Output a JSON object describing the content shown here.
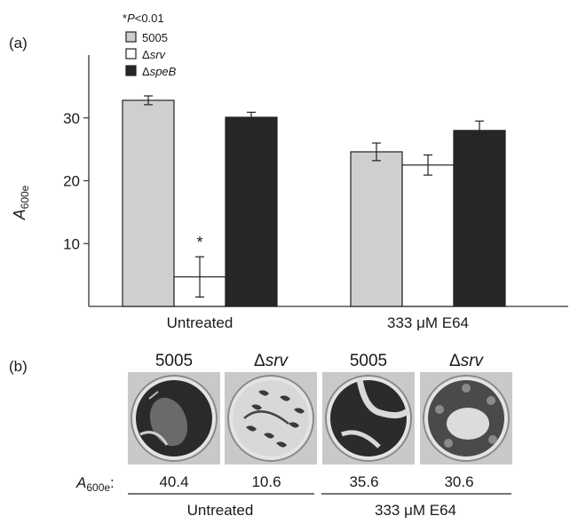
{
  "panel_a": {
    "label": "(a)",
    "significance": {
      "prefix": "*",
      "italic": "P",
      "rest": "<0.01"
    },
    "ylabel": {
      "main": "A",
      "sub": "600e"
    },
    "chart_data": {
      "type": "bar",
      "categories": [
        "Untreated",
        "333 μM E64"
      ],
      "series": [
        {
          "name": "5005",
          "name_parts": {
            "prefix": "",
            "italic": ""
          },
          "color": "#cfcfcf",
          "values": [
            32.8,
            24.6
          ],
          "errors": [
            0.7,
            1.4
          ]
        },
        {
          "name": "Δsrv",
          "name_parts": {
            "prefix": "Δ",
            "italic": "srv"
          },
          "color": "#ffffff",
          "values": [
            4.7,
            22.5
          ],
          "errors": [
            3.2,
            1.6
          ]
        },
        {
          "name": "ΔspeB",
          "name_parts": {
            "prefix": "Δ",
            "italic": "speB"
          },
          "color": "#262626",
          "values": [
            30.1,
            28.0
          ],
          "errors": [
            0.8,
            1.5
          ]
        }
      ],
      "annotations": [
        {
          "category": 0,
          "series": 1,
          "text": "*"
        }
      ],
      "yticks": [
        10,
        20,
        30
      ],
      "ylim": [
        0,
        40
      ],
      "legend_position": "top-left"
    }
  },
  "panel_b": {
    "label": "(b)",
    "row_label": {
      "main": "A",
      "sub": "600e",
      "colon": ":"
    },
    "wells": [
      {
        "title_prefix": "",
        "title_italic": "",
        "title": "5005",
        "value": "40.4"
      },
      {
        "title_prefix": "Δ",
        "title_italic": "srv",
        "title": "Δsrv",
        "value": "10.6"
      },
      {
        "title_prefix": "",
        "title_italic": "",
        "title": "5005",
        "value": "35.6"
      },
      {
        "title_prefix": "Δ",
        "title_italic": "srv",
        "title": "Δsrv",
        "value": "30.6"
      }
    ],
    "groups": [
      "Untreated",
      "333 μM E64"
    ]
  }
}
